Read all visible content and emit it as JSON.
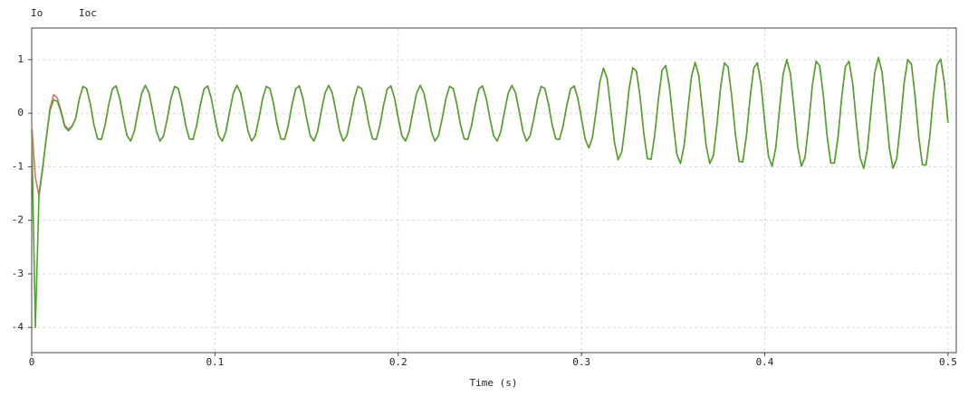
{
  "chart_data": {
    "type": "line",
    "x_label": "Time (s)",
    "xlim": [
      0,
      0.5045
    ],
    "ylim": [
      -4.47,
      1.59
    ],
    "xticks": [
      0,
      0.1,
      0.2,
      0.3,
      0.4,
      0.5
    ],
    "yticks": [
      -4,
      -3,
      -2,
      -1,
      0,
      1
    ],
    "grid": true,
    "x": [
      0,
      0.002,
      0.004,
      0.006,
      0.008,
      0.01,
      0.012,
      0.014,
      0.016,
      0.018,
      0.02,
      0.022,
      0.024,
      0.026,
      0.028,
      0.03,
      0.032,
      0.034,
      0.036,
      0.038,
      0.04,
      0.042,
      0.044,
      0.046,
      0.048,
      0.05,
      0.052,
      0.054,
      0.056,
      0.058,
      0.06,
      0.062,
      0.064,
      0.066,
      0.068,
      0.07,
      0.072,
      0.074,
      0.076,
      0.078,
      0.08,
      0.082,
      0.084,
      0.086,
      0.088,
      0.09,
      0.092,
      0.094,
      0.096,
      0.098,
      0.1,
      0.102,
      0.104,
      0.106,
      0.108,
      0.11,
      0.112,
      0.114,
      0.116,
      0.118,
      0.12,
      0.122,
      0.124,
      0.126,
      0.128,
      0.13,
      0.132,
      0.134,
      0.136,
      0.138,
      0.14,
      0.142,
      0.144,
      0.146,
      0.148,
      0.15,
      0.152,
      0.154,
      0.156,
      0.158,
      0.16,
      0.162,
      0.164,
      0.166,
      0.168,
      0.17,
      0.172,
      0.174,
      0.176,
      0.178,
      0.18,
      0.182,
      0.184,
      0.186,
      0.188,
      0.19,
      0.192,
      0.194,
      0.196,
      0.198,
      0.2,
      0.202,
      0.204,
      0.206,
      0.208,
      0.21,
      0.212,
      0.214,
      0.216,
      0.218,
      0.22,
      0.222,
      0.224,
      0.226,
      0.228,
      0.23,
      0.232,
      0.234,
      0.236,
      0.238,
      0.24,
      0.242,
      0.244,
      0.246,
      0.248,
      0.25,
      0.252,
      0.254,
      0.256,
      0.258,
      0.26,
      0.262,
      0.264,
      0.266,
      0.268,
      0.27,
      0.272,
      0.274,
      0.276,
      0.278,
      0.28,
      0.282,
      0.284,
      0.286,
      0.288,
      0.29,
      0.292,
      0.294,
      0.296,
      0.298,
      0.3,
      0.302,
      0.304,
      0.306,
      0.308,
      0.31,
      0.312,
      0.314,
      0.316,
      0.318,
      0.32,
      0.322,
      0.324,
      0.326,
      0.328,
      0.33,
      0.332,
      0.334,
      0.336,
      0.338,
      0.34,
      0.342,
      0.344,
      0.346,
      0.348,
      0.35,
      0.352,
      0.354,
      0.356,
      0.358,
      0.36,
      0.362,
      0.364,
      0.366,
      0.368,
      0.37,
      0.372,
      0.374,
      0.376,
      0.378,
      0.38,
      0.382,
      0.384,
      0.386,
      0.388,
      0.39,
      0.392,
      0.394,
      0.396,
      0.398,
      0.4,
      0.402,
      0.404,
      0.406,
      0.408,
      0.41,
      0.412,
      0.414,
      0.416,
      0.418,
      0.42,
      0.422,
      0.424,
      0.426,
      0.428,
      0.43,
      0.432,
      0.434,
      0.436,
      0.438,
      0.44,
      0.442,
      0.444,
      0.446,
      0.448,
      0.45,
      0.452,
      0.454,
      0.456,
      0.458,
      0.46,
      0.462,
      0.464,
      0.466,
      0.468,
      0.47,
      0.472,
      0.474,
      0.476,
      0.478,
      0.48,
      0.482,
      0.484,
      0.486,
      0.488,
      0.49,
      0.492,
      0.494,
      0.496,
      0.498,
      0.5
    ],
    "series": [
      {
        "name": "Io",
        "color": "#4da52e",
        "values": [
          -0.3,
          -4.0,
          -1.5,
          -1.0,
          -0.45,
          0.05,
          0.25,
          0.22,
          0.02,
          -0.25,
          -0.33,
          -0.25,
          -0.1,
          0.27,
          0.5,
          0.46,
          0.17,
          -0.22,
          -0.48,
          -0.49,
          -0.23,
          0.15,
          0.45,
          0.51,
          0.28,
          -0.09,
          -0.42,
          -0.52,
          -0.34,
          0.03,
          0.37,
          0.52,
          0.38,
          0.04,
          -0.33,
          -0.52,
          -0.42,
          -0.1,
          0.27,
          0.5,
          0.46,
          0.17,
          -0.22,
          -0.48,
          -0.49,
          -0.23,
          0.15,
          0.45,
          0.51,
          0.28,
          -0.09,
          -0.42,
          -0.52,
          -0.34,
          0.03,
          0.37,
          0.52,
          0.38,
          0.04,
          -0.33,
          -0.52,
          -0.42,
          -0.1,
          0.27,
          0.5,
          0.46,
          0.17,
          -0.22,
          -0.48,
          -0.49,
          -0.23,
          0.15,
          0.45,
          0.51,
          0.28,
          -0.09,
          -0.42,
          -0.52,
          -0.34,
          0.03,
          0.37,
          0.52,
          0.38,
          0.04,
          -0.33,
          -0.52,
          -0.42,
          -0.1,
          0.27,
          0.5,
          0.46,
          0.17,
          -0.22,
          -0.48,
          -0.49,
          -0.23,
          0.15,
          0.45,
          0.51,
          0.28,
          -0.09,
          -0.42,
          -0.52,
          -0.34,
          0.03,
          0.37,
          0.52,
          0.38,
          0.04,
          -0.33,
          -0.52,
          -0.42,
          -0.1,
          0.27,
          0.5,
          0.46,
          0.17,
          -0.22,
          -0.48,
          -0.49,
          -0.23,
          0.15,
          0.45,
          0.51,
          0.28,
          -0.09,
          -0.42,
          -0.52,
          -0.34,
          0.03,
          0.37,
          0.52,
          0.38,
          0.04,
          -0.33,
          -0.52,
          -0.42,
          -0.1,
          0.27,
          0.5,
          0.46,
          0.17,
          -0.22,
          -0.48,
          -0.49,
          -0.23,
          0.15,
          0.45,
          0.51,
          0.28,
          -0.1,
          -0.48,
          -0.65,
          -0.45,
          0.04,
          0.58,
          0.84,
          0.65,
          0.07,
          -0.55,
          -0.87,
          -0.72,
          -0.18,
          0.46,
          0.85,
          0.78,
          0.3,
          -0.38,
          -0.85,
          -0.86,
          -0.4,
          0.27,
          0.8,
          0.89,
          0.5,
          -0.16,
          -0.76,
          -0.94,
          -0.61,
          0.05,
          0.68,
          0.95,
          0.7,
          0.07,
          -0.6,
          -0.94,
          -0.79,
          -0.19,
          0.51,
          0.94,
          0.86,
          0.31,
          -0.4,
          -0.9,
          -0.91,
          -0.42,
          0.29,
          0.84,
          0.94,
          0.53,
          -0.17,
          -0.8,
          -0.99,
          -0.65,
          0.05,
          0.72,
          1.0,
          0.74,
          0.08,
          -0.63,
          -0.99,
          -0.82,
          -0.2,
          0.53,
          0.97,
          0.88,
          0.32,
          -0.42,
          -0.93,
          -0.93,
          -0.44,
          0.3,
          0.87,
          0.97,
          0.55,
          -0.18,
          -0.83,
          -1.03,
          -0.67,
          0.05,
          0.75,
          1.04,
          0.77,
          0.08,
          -0.65,
          -1.03,
          -0.85,
          -0.21,
          0.55,
          1.0,
          0.92,
          0.33,
          -0.43,
          -0.96,
          -0.97,
          -0.45,
          0.31,
          0.9,
          1.01,
          0.57,
          -0.18
        ]
      },
      {
        "name": "Ioc",
        "color": "#e07272",
        "values": [
          -0.2,
          -1.2,
          -1.55,
          -1.05,
          -0.45,
          0.1,
          0.35,
          0.28,
          0.05,
          -0.22,
          -0.3,
          -0.24,
          -0.1,
          0.27,
          0.5,
          0.46,
          0.17,
          -0.22,
          -0.48,
          -0.49,
          -0.23,
          0.15,
          0.45,
          0.51,
          0.28,
          -0.09,
          -0.42,
          -0.52,
          -0.34,
          0.03,
          0.37,
          0.52,
          0.38,
          0.04,
          -0.33,
          -0.52,
          -0.42,
          -0.1,
          0.27,
          0.5,
          0.46,
          0.17,
          -0.22,
          -0.48,
          -0.49,
          -0.23,
          0.15,
          0.45,
          0.51,
          0.28,
          -0.09,
          -0.42,
          -0.52,
          -0.34,
          0.03,
          0.37,
          0.52,
          0.38,
          0.04,
          -0.33,
          -0.52,
          -0.42,
          -0.1,
          0.27,
          0.5,
          0.46,
          0.17,
          -0.22,
          -0.48,
          -0.49,
          -0.23,
          0.15,
          0.45,
          0.51,
          0.28,
          -0.09,
          -0.42,
          -0.52,
          -0.34,
          0.03,
          0.37,
          0.52,
          0.38,
          0.04,
          -0.33,
          -0.52,
          -0.42,
          -0.1,
          0.27,
          0.5,
          0.46,
          0.17,
          -0.22,
          -0.48,
          -0.49,
          -0.23,
          0.15,
          0.45,
          0.51,
          0.28,
          -0.09,
          -0.42,
          -0.52,
          -0.34,
          0.03,
          0.37,
          0.52,
          0.38,
          0.04,
          -0.33,
          -0.52,
          -0.42,
          -0.1,
          0.27,
          0.5,
          0.46,
          0.17,
          -0.22,
          -0.48,
          -0.49,
          -0.23,
          0.15,
          0.45,
          0.51,
          0.28,
          -0.09,
          -0.42,
          -0.52,
          -0.34,
          0.03,
          0.37,
          0.52,
          0.38,
          0.04,
          -0.33,
          -0.52,
          -0.42,
          -0.1,
          0.27,
          0.5,
          0.46,
          0.17,
          -0.22,
          -0.48,
          -0.49,
          -0.23,
          0.15,
          0.45,
          0.51,
          0.28,
          -0.1,
          -0.48,
          -0.65,
          -0.45,
          0.04,
          0.58,
          0.84,
          0.65,
          0.07,
          -0.55,
          -0.87,
          -0.72,
          -0.18,
          0.46,
          0.85,
          0.78,
          0.3,
          -0.38,
          -0.85,
          -0.86,
          -0.4,
          0.27,
          0.8,
          0.89,
          0.5,
          -0.16,
          -0.76,
          -0.94,
          -0.61,
          0.05,
          0.68,
          0.95,
          0.7,
          0.07,
          -0.6,
          -0.94,
          -0.79,
          -0.19,
          0.51,
          0.94,
          0.86,
          0.31,
          -0.4,
          -0.9,
          -0.91,
          -0.42,
          0.29,
          0.84,
          0.94,
          0.53,
          -0.17,
          -0.8,
          -0.99,
          -0.65,
          0.05,
          0.72,
          1.0,
          0.74,
          0.08,
          -0.63,
          -0.99,
          -0.82,
          -0.2,
          0.53,
          0.97,
          0.88,
          0.32,
          -0.42,
          -0.93,
          -0.93,
          -0.44,
          0.3,
          0.87,
          0.97,
          0.55,
          -0.18,
          -0.83,
          -1.03,
          -0.67,
          0.05,
          0.75,
          1.04,
          0.77,
          0.08,
          -0.65,
          -1.03,
          -0.85,
          -0.21,
          0.55,
          1.0,
          0.92,
          0.33,
          -0.43,
          -0.96,
          -0.97,
          -0.45,
          0.31,
          0.9,
          1.01,
          0.57,
          -0.18
        ]
      }
    ]
  }
}
